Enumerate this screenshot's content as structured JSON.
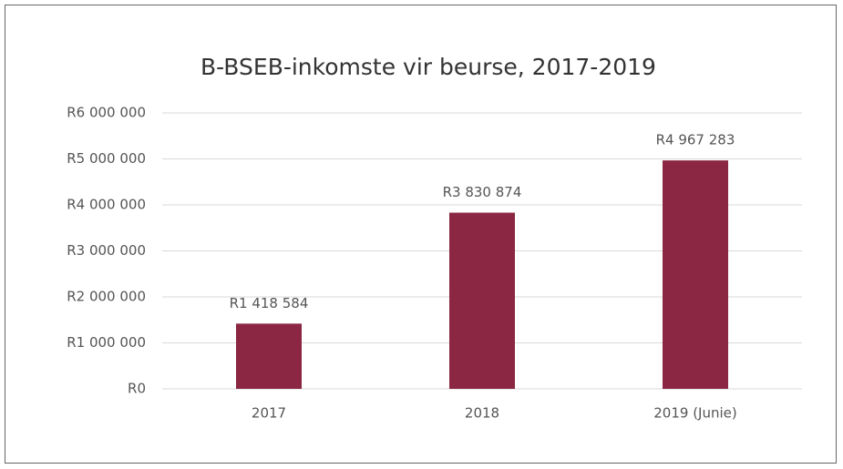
{
  "chart_data": {
    "type": "bar",
    "title": "B-BSEB-inkomste vir beurse, 2017-2019",
    "categories": [
      "2017",
      "2018",
      "2019 (Junie)"
    ],
    "values": [
      1418584,
      3830874,
      4967283
    ],
    "value_labels": [
      "R1 418 584",
      "R3 830 874",
      "R4 967 283"
    ],
    "color": "#8b2742",
    "ylim": [
      0,
      6000000
    ],
    "yticks": [
      {
        "value": 0,
        "label": "R0"
      },
      {
        "value": 1000000,
        "label": "R1 000 000"
      },
      {
        "value": 2000000,
        "label": "R2 000 000"
      },
      {
        "value": 3000000,
        "label": "R3 000 000"
      },
      {
        "value": 4000000,
        "label": "R4 000 000"
      },
      {
        "value": 5000000,
        "label": "R5 000 000"
      },
      {
        "value": 6000000,
        "label": "R6 000 000"
      }
    ],
    "grid": true
  }
}
